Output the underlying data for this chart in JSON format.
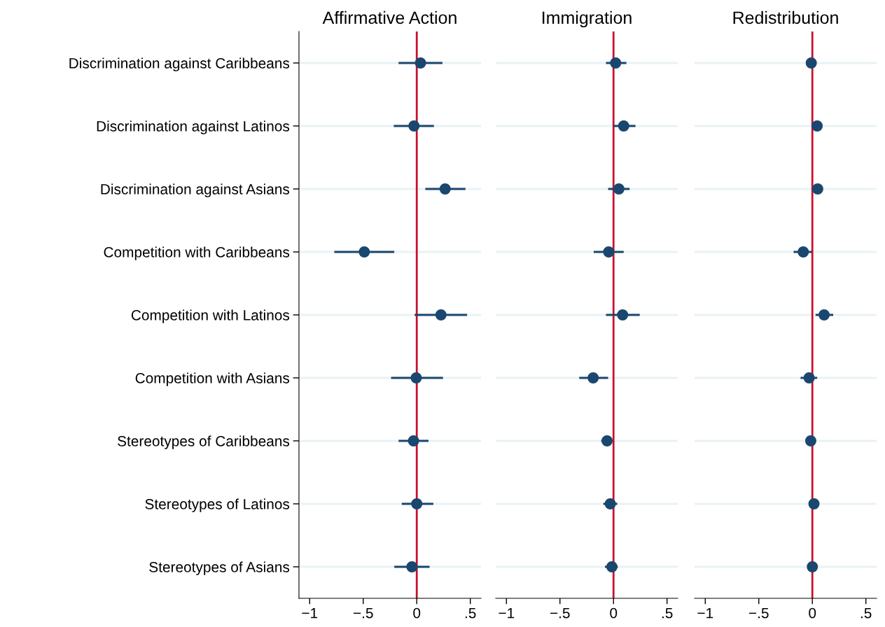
{
  "chart_data": [
    {
      "type": "scatter",
      "title": "Affirmative Action",
      "orientation": "horizontal",
      "categories": [
        "Discrimination against Caribbeans",
        "Discrimination against Latinos",
        "Discrimination against Asians",
        "Competition with Caribbeans",
        "Competition with Latinos",
        "Competition with Asians",
        "Stereotypes of Caribbeans",
        "Stereotypes of Latinos",
        "Stereotypes of Asians"
      ],
      "series": [
        {
          "color": "#1a476f",
          "values": [
            0.035,
            -0.026,
            0.265,
            -0.49,
            0.226,
            -0.005,
            -0.03,
            0.0,
            -0.045
          ],
          "errors": [
            [
              -0.17,
              0.24
            ],
            [
              -0.215,
              0.16
            ],
            [
              0.08,
              0.455
            ],
            [
              -0.77,
              -0.21
            ],
            [
              -0.02,
              0.47
            ],
            [
              -0.24,
              0.245
            ],
            [
              -0.17,
              0.11
            ],
            [
              -0.14,
              0.155
            ],
            [
              -0.21,
              0.12
            ]
          ]
        }
      ],
      "xlim": [
        -1.1,
        0.6
      ],
      "xticks": [
        {
          "value": -1,
          "label": "−1"
        },
        {
          "value": -0.5,
          "label": "−.5"
        },
        0,
        {
          "value": 0.5,
          "label": ".5"
        }
      ],
      "ref_lines": [
        {
          "axis": "x",
          "value": 0,
          "color": "#c8102e"
        }
      ],
      "grid": "y",
      "marker": "circle"
    },
    {
      "type": "scatter",
      "title": "Immigration",
      "orientation": "horizontal",
      "tick_labels": "x",
      "categories": [
        null,
        null,
        null,
        null,
        null,
        null,
        null,
        null,
        null
      ],
      "series": [
        {
          "color": "#1a476f",
          "values": [
            0.02,
            0.095,
            0.05,
            -0.045,
            0.085,
            -0.19,
            -0.06,
            -0.03,
            -0.015
          ],
          "errors": [
            [
              -0.07,
              0.12
            ],
            [
              0.0,
              0.205
            ],
            [
              -0.05,
              0.15
            ],
            [
              -0.185,
              0.095
            ],
            [
              -0.07,
              0.245
            ],
            [
              -0.32,
              -0.05
            ],
            [
              -0.115,
              -0.02
            ],
            [
              -0.095,
              0.035
            ],
            [
              -0.08,
              0.04
            ]
          ]
        }
      ],
      "xlim": [
        -1.1,
        0.6
      ],
      "xticks": [
        {
          "value": -1,
          "label": "−1"
        },
        {
          "value": -0.5,
          "label": "−.5"
        },
        0,
        {
          "value": 0.5,
          "label": ".5"
        }
      ],
      "ref_lines": [
        {
          "axis": "x",
          "value": 0,
          "color": "#c8102e"
        }
      ],
      "grid": "y",
      "marker": "circle"
    },
    {
      "type": "scatter",
      "title": "Redistribution",
      "orientation": "horizontal",
      "tick_labels": "x",
      "categories": [
        null,
        null,
        null,
        null,
        null,
        null,
        null,
        null,
        null
      ],
      "series": [
        {
          "color": "#1a476f",
          "values": [
            -0.01,
            0.045,
            0.05,
            -0.085,
            0.11,
            -0.03,
            -0.015,
            0.015,
            0.0
          ],
          "errors": [
            null,
            [
              0.01,
              0.08
            ],
            null,
            [
              -0.175,
              -0.005
            ],
            [
              0.03,
              0.195
            ],
            [
              -0.11,
              0.045
            ],
            null,
            null,
            null
          ]
        }
      ],
      "xlim": [
        -1.1,
        0.6
      ],
      "xticks": [
        {
          "value": -1,
          "label": "−1"
        },
        {
          "value": -0.5,
          "label": "−.5"
        },
        0,
        {
          "value": 0.5,
          "label": ".5"
        }
      ],
      "ref_lines": [
        {
          "axis": "x",
          "value": 0,
          "color": "#c8102e"
        }
      ],
      "grid": "y",
      "marker": "circle"
    }
  ]
}
